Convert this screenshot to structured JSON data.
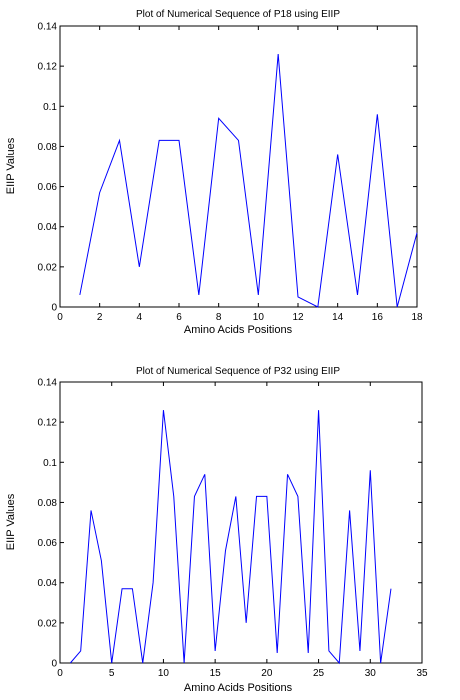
{
  "chart_data": [
    {
      "type": "line",
      "title": "Plot of Numerical Sequence of P18 using EIIP",
      "xlabel": "Amino Acids Positions",
      "ylabel": "EIIP Values",
      "xlim": [
        0,
        18
      ],
      "ylim": [
        0,
        0.14
      ],
      "xticks": [
        0,
        2,
        4,
        6,
        8,
        10,
        12,
        14,
        16,
        18
      ],
      "yticks": [
        0,
        0.02,
        0.04,
        0.06,
        0.08,
        0.1,
        0.12,
        0.14
      ],
      "xtick_labels": [
        "0",
        "2",
        "4",
        "6",
        "8",
        "10",
        "12",
        "14",
        "16",
        "18"
      ],
      "ytick_labels": [
        "0",
        "0.02",
        "0.04",
        "0.06",
        "0.08",
        "0.1",
        "0.12",
        "0.14"
      ],
      "grid": false,
      "color": "#0000ff",
      "series": [
        {
          "x": [
            1,
            2,
            3,
            4,
            5,
            6,
            7,
            8,
            9,
            10,
            11,
            12,
            13,
            14,
            15,
            16,
            17,
            18
          ],
          "values": [
            0.006,
            0.057,
            0.083,
            0.02,
            0.083,
            0.083,
            0.006,
            0.094,
            0.083,
            0.006,
            0.126,
            0.005,
            0.0,
            0.076,
            0.006,
            0.096,
            0.0,
            0.037
          ]
        }
      ]
    },
    {
      "type": "line",
      "title": "Plot of Numerical Sequence of P32 using EIIP",
      "xlabel": "Amino Acids Positions",
      "ylabel": "EIIP Values",
      "xlim": [
        0,
        35
      ],
      "ylim": [
        0,
        0.14
      ],
      "xticks": [
        0,
        5,
        10,
        15,
        20,
        25,
        30,
        35
      ],
      "yticks": [
        0,
        0.02,
        0.04,
        0.06,
        0.08,
        0.1,
        0.12,
        0.14
      ],
      "xtick_labels": [
        "0",
        "5",
        "10",
        "15",
        "20",
        "25",
        "30",
        "35"
      ],
      "ytick_labels": [
        "0",
        "0.02",
        "0.04",
        "0.06",
        "0.08",
        "0.1",
        "0.12",
        "0.14"
      ],
      "grid": false,
      "color": "#0000ff",
      "series": [
        {
          "x": [
            1,
            2,
            3,
            4,
            5,
            6,
            7,
            8,
            9,
            10,
            11,
            12,
            13,
            14,
            15,
            16,
            17,
            18,
            19,
            20,
            21,
            22,
            23,
            24,
            25,
            26,
            27,
            28,
            29,
            30,
            31,
            32
          ],
          "values": [
            0.0,
            0.006,
            0.076,
            0.051,
            0.0,
            0.037,
            0.037,
            0.0,
            0.04,
            0.126,
            0.083,
            0.0,
            0.083,
            0.094,
            0.006,
            0.056,
            0.083,
            0.02,
            0.083,
            0.083,
            0.005,
            0.094,
            0.083,
            0.005,
            0.126,
            0.006,
            0.0,
            0.076,
            0.006,
            0.096,
            0.0,
            0.037
          ]
        }
      ]
    }
  ]
}
